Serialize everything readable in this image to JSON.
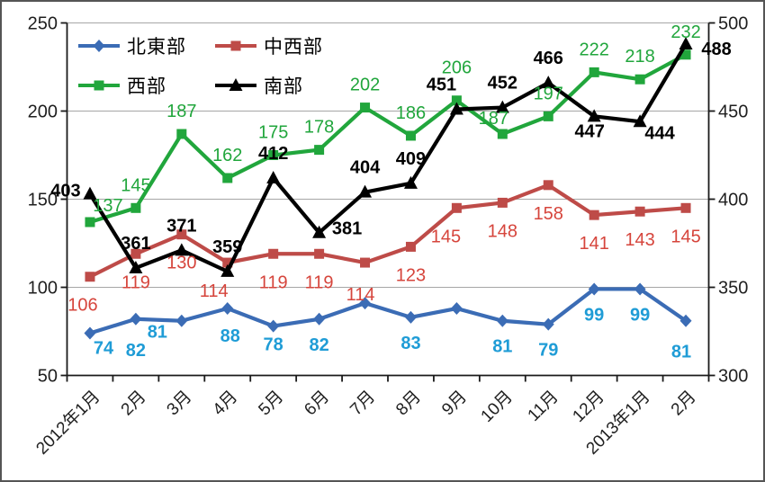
{
  "chart_data": {
    "type": "line",
    "title": "",
    "categories": [
      "2012年1月",
      "2月",
      "3月",
      "4月",
      "5月",
      "6月",
      "7月",
      "8月",
      "9月",
      "10月",
      "11月",
      "12月",
      "2013年1月",
      "2月"
    ],
    "axes": {
      "left": {
        "min": 50,
        "max": 250,
        "ticks": [
          250,
          200,
          150,
          100,
          50
        ]
      },
      "right": {
        "min": 300,
        "max": 500,
        "ticks": [
          500,
          450,
          400,
          350,
          300
        ]
      }
    },
    "grid": true,
    "legend_position": "inside-top-left",
    "colors": {
      "grid": "#A6A6A6",
      "axis": "#1a1a1a",
      "tick_label": "#1f1f1f"
    },
    "series": [
      {
        "key": "northeast",
        "name": "北東部",
        "axis": "left",
        "color": "#3B6CB5",
        "marker": "diamond",
        "label_color": "#1F9CD6",
        "label_bold": true,
        "values": [
          74,
          82,
          81,
          88,
          78,
          82,
          91,
          83,
          88,
          81,
          79,
          99,
          99,
          81
        ],
        "labels": [
          "74",
          "82",
          "81",
          "88",
          "78",
          "82",
          "",
          "83",
          "",
          "81",
          "79",
          "99",
          "99",
          "81"
        ],
        "label_offsets": {
          "default": [
            0,
            28
          ],
          "0": [
            15,
            16
          ],
          "1": [
            0,
            34
          ],
          "2": [
            -27,
            12
          ],
          "3": [
            3,
            30
          ],
          "4": [
            0,
            20
          ],
          "13": [
            -5,
            34
          ]
        }
      },
      {
        "key": "midwest",
        "name": "中西部",
        "axis": "left",
        "color": "#BE4B48",
        "marker": "square",
        "label_color": "#D6453C",
        "label_bold": false,
        "values": [
          106,
          119,
          130,
          114,
          119,
          119,
          114,
          123,
          145,
          148,
          158,
          141,
          143,
          145
        ],
        "labels": [
          "106",
          "119",
          "130",
          "114",
          "119",
          "119",
          "114",
          "123",
          "145",
          "148",
          "158",
          "141",
          "143",
          "145"
        ],
        "label_offsets": {
          "default": [
            0,
            31
          ],
          "0": [
            -8,
            31
          ],
          "3": [
            -15,
            31
          ],
          "6": [
            -5,
            35
          ],
          "8": [
            -12,
            31
          ]
        }
      },
      {
        "key": "west",
        "name": "西部",
        "axis": "left",
        "color": "#21A63C",
        "marker": "square",
        "label_color": "#21A63C",
        "label_bold": false,
        "values": [
          137,
          145,
          187,
          162,
          175,
          178,
          202,
          186,
          206,
          187,
          197,
          222,
          218,
          232
        ],
        "labels": [
          "137",
          "145",
          "187",
          "162",
          "175",
          "178",
          "202",
          "186",
          "206",
          "187",
          "197",
          "222",
          "218",
          "232"
        ],
        "label_offsets": {
          "default": [
            0,
            -26
          ],
          "0": [
            20,
            -19
          ],
          "8": [
            0,
            -37
          ],
          "9": [
            -10,
            -18
          ]
        }
      },
      {
        "key": "south",
        "name": "南部",
        "axis": "right",
        "color": "#000000",
        "marker": "triangle",
        "label_color": "#000000",
        "label_bold": true,
        "values": [
          403,
          361,
          371,
          359,
          412,
          381,
          404,
          409,
          451,
          452,
          466,
          447,
          444,
          488
        ],
        "labels": [
          "403",
          "361",
          "371",
          "359",
          "412",
          "381",
          "404",
          "409",
          "451",
          "452",
          "466",
          "447",
          "444",
          "488"
        ],
        "label_offsets": {
          "default": [
            0,
            -28
          ],
          "0": [
            -27,
            -4
          ],
          "5": [
            31,
            -5
          ],
          "8": [
            -17,
            -28
          ],
          "11": [
            -5,
            16
          ],
          "12": [
            22,
            12
          ],
          "13": [
            34,
            5
          ]
        }
      }
    ]
  }
}
